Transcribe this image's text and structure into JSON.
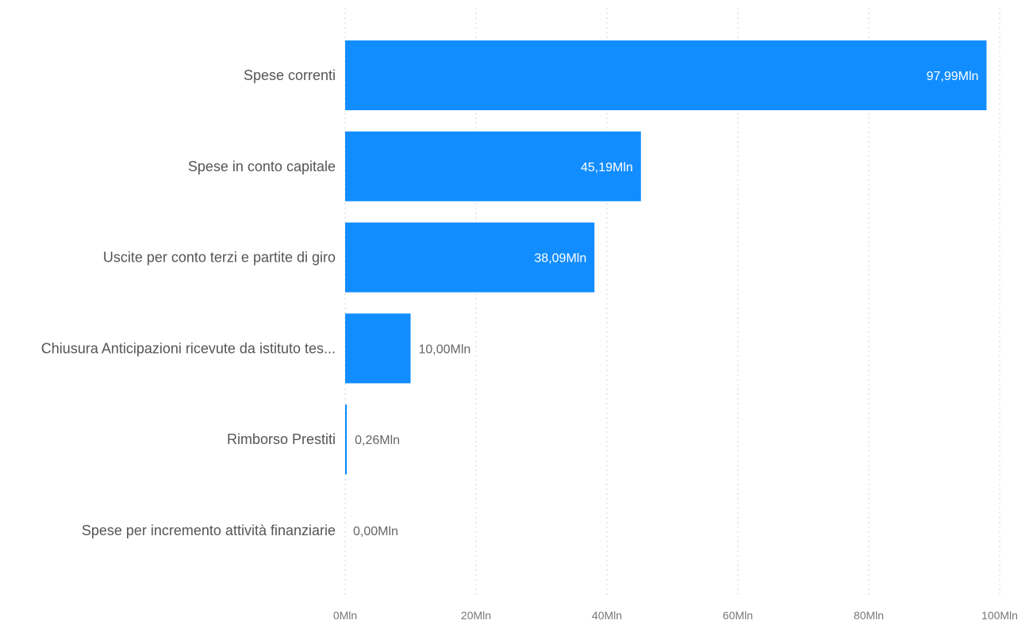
{
  "chart_data": {
    "type": "bar",
    "orientation": "horizontal",
    "categories": [
      "Spese correnti",
      "Spese in conto capitale",
      "Uscite per conto terzi e partite di giro",
      "Chiusura Anticipazioni ricevute da istituto tes...",
      "Rimborso Prestiti",
      "Spese per incremento attività finanziarie"
    ],
    "values": [
      97.99,
      45.19,
      38.09,
      10.0,
      0.26,
      0.0
    ],
    "value_labels": [
      "97,99Mln",
      "45,19Mln",
      "38,09Mln",
      "10,00Mln",
      "0,26Mln",
      "0,00Mln"
    ],
    "xlim": [
      0,
      100
    ],
    "x_ticks": [
      0,
      20,
      40,
      60,
      80,
      100
    ],
    "x_tick_labels": [
      "0Mln",
      "20Mln",
      "40Mln",
      "60Mln",
      "80Mln",
      "100Mln"
    ],
    "grid": true,
    "legend": "none",
    "colors": {
      "bar": "#118DFF",
      "label_inside": "#ffffff",
      "label_outside": "#666666"
    }
  }
}
